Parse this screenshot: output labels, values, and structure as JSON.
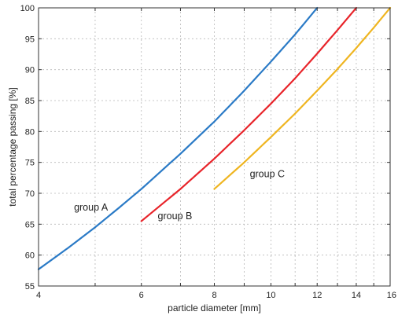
{
  "chart_data": {
    "type": "line",
    "xlabel": "particle diameter [mm]",
    "ylabel": "total percentage passing [%]",
    "x_scale": "log",
    "xlim": [
      4,
      16
    ],
    "ylim": [
      55,
      100
    ],
    "x_ticks": [
      4,
      6,
      8,
      10,
      12,
      14,
      16
    ],
    "y_ticks": [
      55,
      60,
      65,
      70,
      75,
      80,
      85,
      90,
      95,
      100
    ],
    "x_grid": [
      4,
      5,
      6,
      7,
      8,
      9,
      10,
      11,
      12,
      13,
      14,
      15,
      16
    ],
    "grid": true,
    "series": [
      {
        "name": "group A",
        "color": "#2a7ac6",
        "x": [
          4,
          4.5,
          5,
          5.5,
          6,
          7,
          8,
          9,
          10,
          11,
          12
        ],
        "y": [
          57.7,
          61.2,
          64.5,
          67.7,
          70.7,
          76.4,
          81.6,
          86.6,
          91.3,
          95.7,
          100
        ]
      },
      {
        "name": "group B",
        "color": "#e8242a",
        "x": [
          6,
          7,
          8,
          9,
          10,
          11,
          12,
          13,
          14
        ],
        "y": [
          65.5,
          70.7,
          75.6,
          80.2,
          84.5,
          88.6,
          92.6,
          96.4,
          100
        ]
      },
      {
        "name": "group C",
        "color": "#efb520",
        "x": [
          8,
          9,
          10,
          11,
          12,
          13,
          14,
          15,
          16
        ],
        "y": [
          70.7,
          75.0,
          79.1,
          82.9,
          86.6,
          90.1,
          93.5,
          96.8,
          100
        ]
      }
    ],
    "annotations": [
      {
        "text": "group A",
        "x": 4.6,
        "y": 67.2,
        "series": 0
      },
      {
        "text": "group B",
        "x": 6.4,
        "y": 65.8,
        "series": 1
      },
      {
        "text": "group C",
        "x": 9.2,
        "y": 72.6,
        "series": 2
      }
    ]
  }
}
